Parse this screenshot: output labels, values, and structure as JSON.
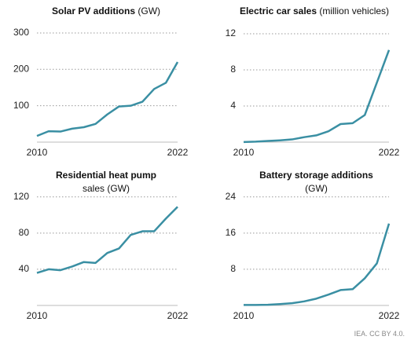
{
  "source": "IEA. CC BY 4.0.",
  "chart_data": [
    {
      "type": "line",
      "title": "Solar PV additions",
      "unit": "(GW)",
      "x": [
        2010,
        2011,
        2012,
        2013,
        2014,
        2015,
        2016,
        2017,
        2018,
        2019,
        2020,
        2021,
        2022
      ],
      "xlim": [
        2010,
        2022
      ],
      "xticks": [
        2010,
        2022
      ],
      "values": [
        17,
        30,
        29,
        37,
        41,
        50,
        76,
        98,
        100,
        111,
        146,
        163,
        220
      ],
      "ylim": [
        0,
        315
      ],
      "yticks": [
        100,
        200,
        300
      ],
      "grid": true,
      "color": "#3a8fa3"
    },
    {
      "type": "line",
      "title": "Electric car sales",
      "unit": "(million vehicles)",
      "x": [
        2010,
        2011,
        2012,
        2013,
        2014,
        2015,
        2016,
        2017,
        2018,
        2019,
        2020,
        2021,
        2022
      ],
      "xlim": [
        2010,
        2022
      ],
      "xticks": [
        2010,
        2022
      ],
      "values": [
        0.01,
        0.05,
        0.13,
        0.2,
        0.3,
        0.55,
        0.75,
        1.2,
        2.0,
        2.1,
        3.0,
        6.6,
        10.2
      ],
      "ylim": [
        0,
        12.7
      ],
      "yticks": [
        4,
        8,
        12
      ],
      "grid": true,
      "color": "#3a8fa3"
    },
    {
      "type": "line",
      "title": "Residential heat pump",
      "unit": "sales (GW)",
      "x": [
        2010,
        2011,
        2012,
        2013,
        2014,
        2015,
        2016,
        2017,
        2018,
        2019,
        2020,
        2021,
        2022
      ],
      "xlim": [
        2010,
        2022
      ],
      "xticks": [
        2010,
        2022
      ],
      "values": [
        36,
        40,
        39,
        43,
        48,
        47,
        58,
        63,
        78,
        82,
        82,
        96,
        109
      ],
      "ylim": [
        0,
        125
      ],
      "yticks": [
        40,
        80,
        120
      ],
      "grid": true,
      "color": "#3a8fa3"
    },
    {
      "type": "line",
      "title": "Battery storage additions",
      "unit": "(GW)",
      "x": [
        2010,
        2011,
        2012,
        2013,
        2014,
        2015,
        2016,
        2017,
        2018,
        2019,
        2020,
        2021,
        2022
      ],
      "xlim": [
        2010,
        2022
      ],
      "xticks": [
        2010,
        2022
      ],
      "values": [
        0.1,
        0.1,
        0.15,
        0.3,
        0.5,
        0.9,
        1.5,
        2.4,
        3.4,
        3.6,
        6.0,
        9.3,
        18.1
      ],
      "ylim": [
        0,
        25
      ],
      "yticks": [
        8,
        16,
        24
      ],
      "grid": true,
      "color": "#3a8fa3"
    }
  ]
}
